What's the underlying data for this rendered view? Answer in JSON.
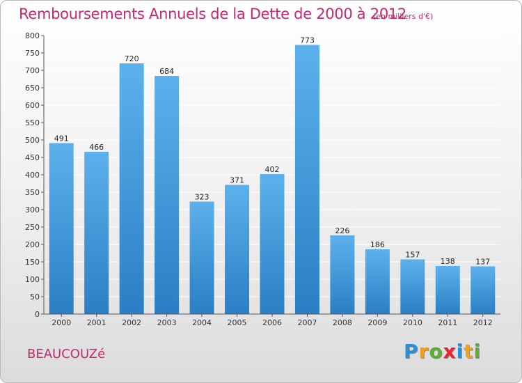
{
  "title": "Remboursements Annuels de la Dette de 2000 à 2012",
  "subtitle": "(en milliers d'€)",
  "commune": "BEAUCOUZé",
  "brand": {
    "letters": [
      "P",
      "r",
      "o",
      "x",
      "i",
      "t",
      "i"
    ],
    "colors": [
      "#2b8fd6",
      "#f2a11f",
      "#58b030",
      "#e8262f",
      "#2b8fd6",
      "#f2a11f",
      "#58b030"
    ]
  },
  "colors": {
    "title": "#c7286e",
    "bar_top": "#5cb1ec",
    "bar_bottom": "#2a7fc4",
    "grid": "#ffffff",
    "axis": "#555555"
  },
  "chart_data": {
    "type": "bar",
    "title": "Remboursements Annuels de la Dette de 2000 à 2012",
    "subtitle": "(en milliers d'€)",
    "categories": [
      "2000",
      "2001",
      "2002",
      "2003",
      "2004",
      "2005",
      "2006",
      "2007",
      "2008",
      "2009",
      "2010",
      "2011",
      "2012"
    ],
    "values": [
      491,
      466,
      720,
      684,
      323,
      371,
      402,
      773,
      226,
      186,
      157,
      138,
      137
    ],
    "ylim": [
      0,
      800
    ],
    "yticks": [
      0,
      50,
      100,
      150,
      200,
      250,
      300,
      350,
      400,
      450,
      500,
      550,
      600,
      650,
      700,
      750,
      800
    ],
    "grid": true,
    "data_labels": true
  }
}
